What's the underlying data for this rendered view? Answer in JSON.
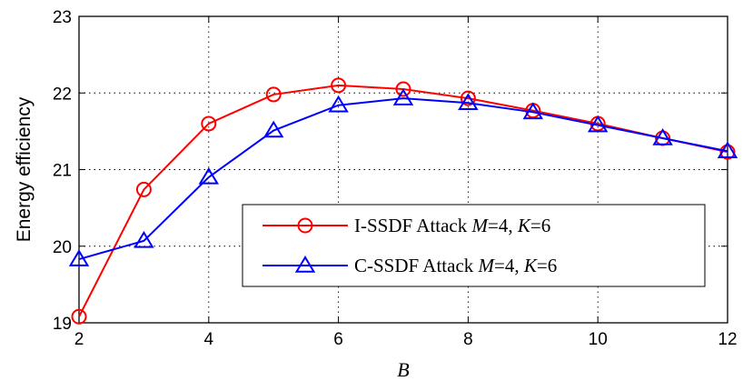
{
  "chart_data": {
    "type": "line",
    "xlabel": "B",
    "ylabel": "Energy efficiency",
    "xlim": [
      2,
      12
    ],
    "ylim": [
      19,
      23
    ],
    "xticks": [
      "2",
      "4",
      "6",
      "8",
      "10",
      "12"
    ],
    "yticks": [
      "19",
      "20",
      "21",
      "22",
      "23"
    ],
    "grid": true,
    "legend_position": "center-right",
    "x": [
      2,
      3,
      4,
      5,
      6,
      7,
      8,
      9,
      10,
      11,
      12
    ],
    "series": [
      {
        "name": "I-SSDF Attack M=4, K=6",
        "label_prefix": "I-SSDF Attack ",
        "label_M": "M",
        "label_M_val": "=4, ",
        "label_K": "K",
        "label_K_val": "=6",
        "color": "#ff0000",
        "marker": "circle",
        "values": [
          19.08,
          20.74,
          21.6,
          21.98,
          22.1,
          22.05,
          21.93,
          21.77,
          21.6,
          21.41,
          21.23
        ]
      },
      {
        "name": "C-SSDF Attack M=4, K=6",
        "label_prefix": "C-SSDF Attack ",
        "label_M": "M",
        "label_M_val": "=4, ",
        "label_K": "K",
        "label_K_val": "=6",
        "color": "#0000ff",
        "marker": "triangle",
        "values": [
          19.83,
          20.07,
          20.9,
          21.51,
          21.84,
          21.93,
          21.87,
          21.75,
          21.58,
          21.41,
          21.24
        ]
      }
    ]
  }
}
